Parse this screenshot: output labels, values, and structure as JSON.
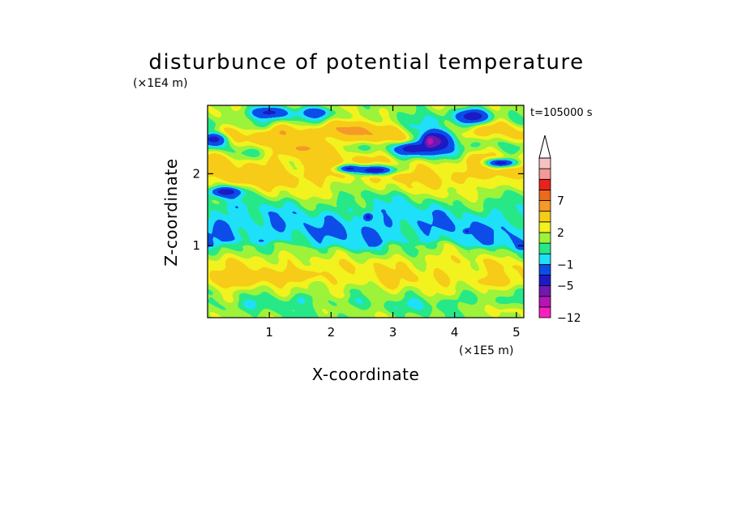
{
  "chart_data": {
    "type": "heatmap",
    "title": "disturbunce of potential temperature",
    "time_label": "t=105000 s",
    "xlabel": "X-coordinate",
    "ylabel": "Z-coordinate",
    "x_unit": "(×1E5 m)",
    "y_unit": "(×1E4 m)",
    "xlim": [
      0,
      5.12
    ],
    "ylim": [
      0,
      2.95
    ],
    "x_ticks": [
      1,
      2,
      3,
      4,
      5
    ],
    "y_ticks": [
      1,
      2
    ],
    "grid": false,
    "colorbar": {
      "levels": [
        -12,
        -9,
        -7,
        -5,
        -3,
        -1,
        0,
        1,
        2,
        3,
        5,
        7,
        9,
        12
      ],
      "colors": [
        "#f81fc0",
        "#b814b4",
        "#7018b0",
        "#1c1ac4",
        "#0c4ce8",
        "#1ee0f8",
        "#27e887",
        "#9df23a",
        "#f2f21e",
        "#f6cc18",
        "#f59928",
        "#ec6a1c",
        "#e8221c",
        "#f49898",
        "#f5c2c2"
      ],
      "labeled_levels": [
        -12,
        -5,
        -1,
        2,
        7
      ],
      "extend": "max"
    },
    "bands": [
      {
        "z": 0.05,
        "value": 1.3
      },
      {
        "z": 0.2,
        "value": 0.5
      },
      {
        "z": 0.35,
        "value": 1.6
      },
      {
        "z": 0.55,
        "value": 2.9
      },
      {
        "z": 0.75,
        "value": 2.6
      },
      {
        "z": 0.95,
        "value": 1.1
      },
      {
        "z": 1.05,
        "value": -0.5
      },
      {
        "z": 1.25,
        "value": -0.9
      },
      {
        "z": 1.45,
        "value": -0.3
      },
      {
        "z": 1.6,
        "value": 0.6
      },
      {
        "z": 1.8,
        "value": 2.2
      },
      {
        "z": 2.0,
        "value": 3.8
      },
      {
        "z": 2.15,
        "value": 3.2
      },
      {
        "z": 2.35,
        "value": 1.2
      },
      {
        "z": 2.55,
        "value": 4.0
      },
      {
        "z": 2.75,
        "value": 0.8
      },
      {
        "z": 2.95,
        "value": 1.8
      }
    ],
    "features": [
      {
        "x": 0.3,
        "z": 1.75,
        "rx": 0.25,
        "rz": 0.07,
        "value": -4.5
      },
      {
        "x": 0.1,
        "z": 2.48,
        "rx": 0.22,
        "rz": 0.1,
        "value": -4.0
      },
      {
        "x": 0.7,
        "z": 1.95,
        "rx": 0.35,
        "rz": 0.1,
        "value": 4.5
      },
      {
        "x": 1.55,
        "z": 2.35,
        "rx": 0.5,
        "rz": 0.14,
        "value": 5.2
      },
      {
        "x": 1.0,
        "z": 2.85,
        "rx": 0.3,
        "rz": 0.08,
        "value": -3.5
      },
      {
        "x": 1.75,
        "z": 2.85,
        "rx": 0.25,
        "rz": 0.08,
        "value": -2.5
      },
      {
        "x": 2.4,
        "z": 2.6,
        "rx": 0.4,
        "rz": 0.14,
        "value": 5.5
      },
      {
        "x": 2.7,
        "z": 2.05,
        "rx": 0.35,
        "rz": 0.07,
        "value": -4.5
      },
      {
        "x": 2.3,
        "z": 2.07,
        "rx": 0.2,
        "rz": 0.05,
        "value": -3.5
      },
      {
        "x": 3.3,
        "z": 2.35,
        "rx": 0.25,
        "rz": 0.08,
        "value": -4.5
      },
      {
        "x": 3.7,
        "z": 2.45,
        "rx": 0.32,
        "rz": 0.2,
        "value": -5.5
      },
      {
        "x": 3.6,
        "z": 2.45,
        "rx": 0.08,
        "rz": 0.08,
        "value": -8.0
      },
      {
        "x": 4.3,
        "z": 2.8,
        "rx": 0.25,
        "rz": 0.1,
        "value": -4.5
      },
      {
        "x": 4.75,
        "z": 2.15,
        "rx": 0.25,
        "rz": 0.06,
        "value": -4.0
      },
      {
        "x": 4.95,
        "z": 2.55,
        "rx": 0.25,
        "rz": 0.1,
        "value": 3.0
      },
      {
        "x": 4.7,
        "z": 1.9,
        "rx": 0.5,
        "rz": 0.07,
        "value": 2.8
      },
      {
        "x": 2.6,
        "z": 1.4,
        "rx": 0.07,
        "rz": 0.05,
        "value": -4.5
      },
      {
        "x": 4.2,
        "z": 1.2,
        "rx": 0.05,
        "rz": 0.03,
        "value": -4.0
      },
      {
        "x": 0.5,
        "z": 0.55,
        "rx": 0.5,
        "rz": 0.12,
        "value": 4.0
      },
      {
        "x": 4.6,
        "z": 0.5,
        "rx": 0.4,
        "rz": 0.1,
        "value": 3.5
      },
      {
        "x": 1.6,
        "z": 0.6,
        "rx": 0.35,
        "rz": 0.1,
        "value": 3.4
      },
      {
        "x": 4.9,
        "z": 0.1,
        "rx": 0.4,
        "rz": 0.1,
        "value": 2.1
      }
    ]
  }
}
